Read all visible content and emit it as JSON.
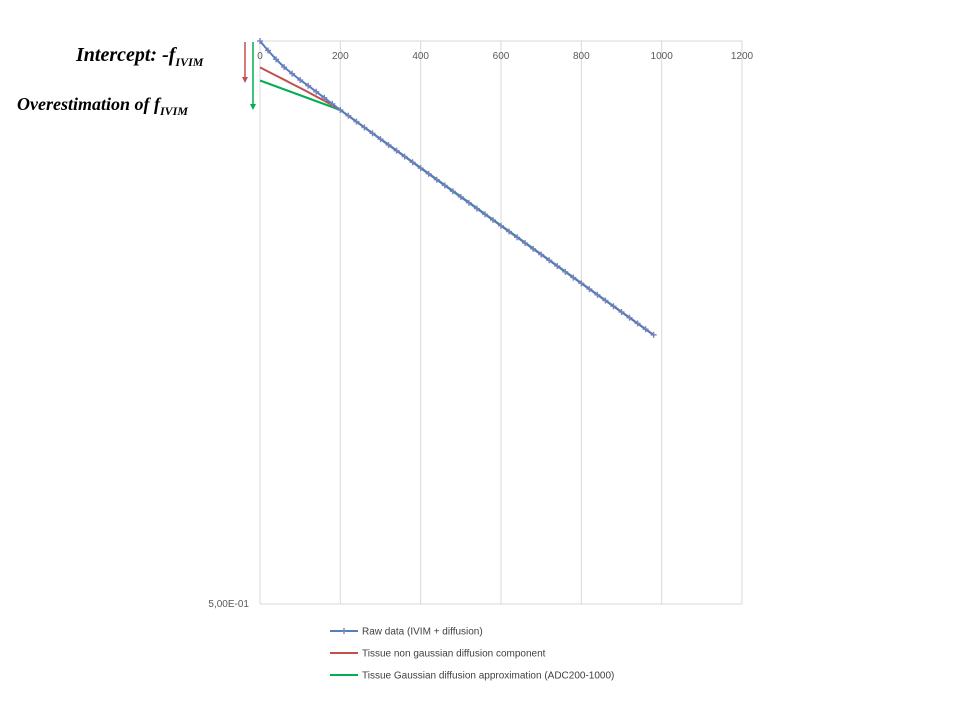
{
  "annotations": {
    "intercept_main": "Intercept: -f",
    "intercept_sub": "IVIM",
    "overestimation_main": "Overestimation  of f",
    "overestimation_sub": "IVIM",
    "intercept_arrow_color": "#c0504d",
    "overestimation_arrow_color": "#00b050"
  },
  "chart_data": {
    "type": "line",
    "title": "",
    "xlabel": "",
    "ylabel": "",
    "x_ticks": [
      0,
      200,
      400,
      600,
      800,
      1000,
      1200
    ],
    "xlim": [
      0,
      1200
    ],
    "y_scale": "log",
    "y_tick_label": "5,00E-01",
    "ylim": [
      0.5,
      1.0
    ],
    "x_axis_position": "top",
    "grid": "vertical",
    "legend_position": "bottom",
    "series": [
      {
        "name": "Raw data (IVIM + diffusion)",
        "color": "#4f81bd",
        "marker": "plus",
        "x": [
          0,
          20,
          40,
          60,
          80,
          100,
          120,
          140,
          160,
          180,
          200,
          220,
          240,
          260,
          280,
          300,
          320,
          340,
          360,
          380,
          400,
          420,
          440,
          460,
          480,
          500,
          520,
          540,
          560,
          580,
          600,
          620,
          640,
          660,
          680,
          700,
          720,
          740,
          760,
          780,
          800,
          820,
          840,
          860,
          880,
          900,
          920,
          940,
          960,
          980
        ],
        "y": [
          1.0,
          0.9884,
          0.9777,
          0.9684,
          0.9606,
          0.9531,
          0.9464,
          0.9395,
          0.9325,
          0.9255,
          0.9186,
          0.9121,
          0.9055,
          0.899,
          0.8926,
          0.8862,
          0.8799,
          0.8737,
          0.8674,
          0.8613,
          0.8551,
          0.8491,
          0.843,
          0.8371,
          0.8311,
          0.8253,
          0.8194,
          0.8136,
          0.8079,
          0.8022,
          0.7965,
          0.7909,
          0.7853,
          0.7797,
          0.7742,
          0.7688,
          0.7634,
          0.758,
          0.7526,
          0.7473,
          0.7421,
          0.7368,
          0.7316,
          0.7265,
          0.7214,
          0.7163,
          0.7113,
          0.7063,
          0.7013,
          0.6964
        ]
      },
      {
        "name": "Tissue non gaussian diffusion component",
        "color": "#c0504d",
        "x": [
          0,
          20,
          40,
          60,
          80,
          100,
          120,
          140,
          160,
          180,
          200,
          300,
          400,
          500,
          600,
          700,
          800,
          900,
          980
        ],
        "y": [
          0.968,
          0.9632,
          0.9583,
          0.9535,
          0.9486,
          0.9438,
          0.939,
          0.934,
          0.929,
          0.924,
          0.9186,
          0.8862,
          0.8551,
          0.8253,
          0.7965,
          0.7688,
          0.7421,
          0.7163,
          0.6964
        ]
      },
      {
        "name": "Tissue Gaussian diffusion approximation (ADC200-1000)",
        "color": "#00b050",
        "x": [
          0,
          200,
          980
        ],
        "y": [
          0.9525,
          0.9186,
          0.6964
        ]
      }
    ]
  }
}
